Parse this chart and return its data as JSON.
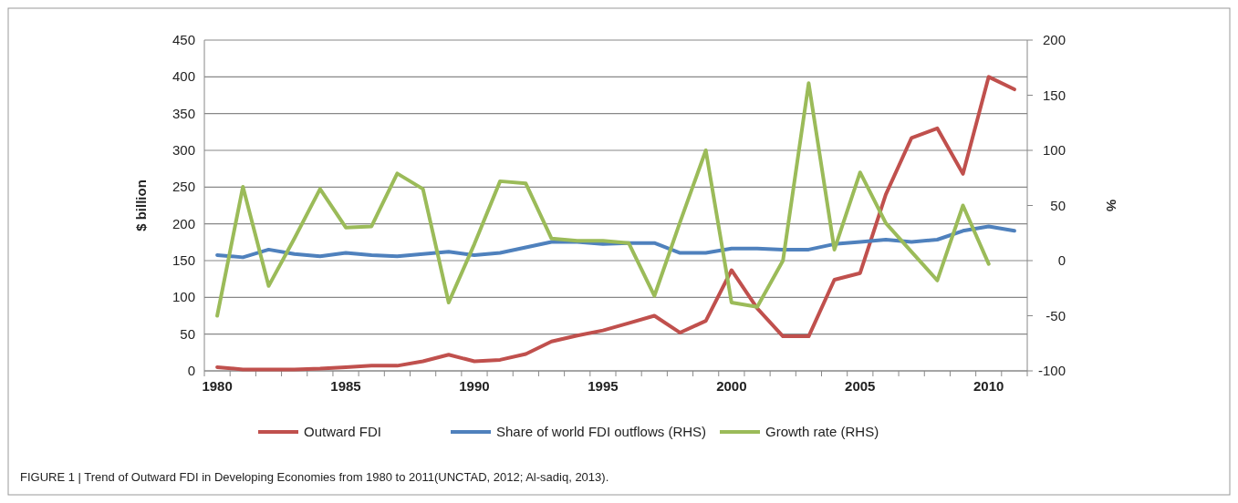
{
  "chart_data": {
    "type": "line",
    "ylabel": "$ billion",
    "y2label": "%",
    "categories": [
      "1980",
      null,
      null,
      null,
      null,
      "1985",
      null,
      null,
      null,
      null,
      "1990",
      null,
      null,
      null,
      null,
      "1995",
      null,
      null,
      null,
      null,
      "2000",
      null,
      null,
      null,
      null,
      "2005",
      null,
      null,
      null,
      null,
      "2010",
      null
    ],
    "series": [
      {
        "name": "Outward FDI",
        "color": "#c0504d",
        "values": [
          5,
          2,
          2,
          2,
          3,
          5,
          7,
          7,
          13,
          22,
          13,
          15,
          23,
          40,
          48,
          55,
          65,
          75,
          52,
          68,
          137,
          85,
          47,
          47,
          124,
          133,
          240,
          317,
          330,
          268,
          400,
          383
        ]
      },
      {
        "name": "Share of world FDI outflows (RHS)",
        "color": "#4f81bd",
        "axis": "y2",
        "values": [
          5,
          3,
          10,
          6,
          4,
          7,
          5,
          4,
          6,
          8,
          5,
          7,
          12,
          17,
          17,
          15,
          16,
          16,
          7,
          7,
          11,
          11,
          10,
          10,
          15,
          17,
          19,
          17,
          19,
          27,
          31,
          27
        ]
      },
      {
        "name": "Growth rate (RHS)",
        "color": "#9bbb59",
        "axis": "y2",
        "values": [
          -50,
          67,
          -23,
          20,
          65,
          30,
          31,
          79,
          65,
          -38,
          15,
          72,
          70,
          20,
          18,
          18,
          16,
          -32,
          35,
          100,
          -38,
          -42,
          0,
          161,
          10,
          80,
          34,
          8,
          -18,
          50,
          -3,
          null
        ]
      }
    ],
    "ylim": [
      0,
      450
    ],
    "yticks": [
      0,
      50,
      100,
      150,
      200,
      250,
      300,
      350,
      400,
      450
    ],
    "y2lim": [
      -100,
      200
    ],
    "y2ticks": [
      -100,
      -50,
      0,
      50,
      100,
      150,
      200
    ],
    "grid": "y",
    "legend": "bottom",
    "line_style": "solid",
    "marker": "none",
    "annotations": [
      "FIGURE 1 | Trend of Outward FDI in Developing Economies from 1980 to 2011(UNCTAD, 2012; Al-sadiq, 2013)."
    ]
  }
}
